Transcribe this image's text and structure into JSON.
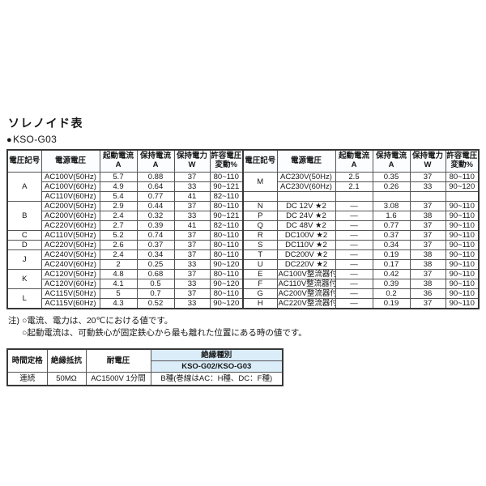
{
  "page": {
    "title": "ソレノイド表",
    "model_bullet": "●",
    "model": "KSO-G03"
  },
  "solenoid": {
    "headers": {
      "symbol": "電圧記号",
      "source": "電源電圧",
      "inrush": [
        "起動電流",
        "A"
      ],
      "holding_current": [
        "保持電流",
        "A"
      ],
      "holding_power": [
        "保持電力",
        "W"
      ],
      "tolerance": [
        "許容電圧",
        "変動%"
      ]
    },
    "rows": [
      {
        "left": [
          {
            "t": "A",
            "rs": 3,
            "sym": 1
          },
          {
            "t": "AC100V(50Hz)"
          },
          {
            "t": "5.7"
          },
          {
            "t": "0.88"
          },
          {
            "t": "37"
          },
          {
            "t": "80~110"
          }
        ],
        "right": [
          {
            "t": "M",
            "rs": 2,
            "sym": 1
          },
          {
            "t": "AC230V(50Hz)"
          },
          {
            "t": "2.5"
          },
          {
            "t": "0.35"
          },
          {
            "t": "37"
          },
          {
            "t": "80~110"
          }
        ]
      },
      {
        "left": [
          {
            "t": "AC100V(60Hz)"
          },
          {
            "t": "4.9"
          },
          {
            "t": "0.64"
          },
          {
            "t": "33"
          },
          {
            "t": "90~121"
          }
        ],
        "right": [
          {
            "t": "AC230V(60Hz)"
          },
          {
            "t": "2.1"
          },
          {
            "t": "0.26"
          },
          {
            "t": "33"
          },
          {
            "t": "90~120"
          }
        ]
      },
      {
        "left": [
          {
            "t": "AC110V(60Hz)"
          },
          {
            "t": "5.4"
          },
          {
            "t": "0.77"
          },
          {
            "t": "41"
          },
          {
            "t": "82~110"
          }
        ],
        "right": [
          {
            "t": "",
            "sym": 1
          },
          {
            "t": ""
          },
          {
            "t": ""
          },
          {
            "t": ""
          },
          {
            "t": ""
          },
          {
            "t": ""
          }
        ]
      },
      {
        "left": [
          {
            "t": "B",
            "rs": 3,
            "sym": 1
          },
          {
            "t": "AC200V(50Hz)"
          },
          {
            "t": "2.9"
          },
          {
            "t": "0.44"
          },
          {
            "t": "37"
          },
          {
            "t": "80~110"
          }
        ],
        "right": [
          {
            "t": "N",
            "sym": 1
          },
          {
            "t": "DC 12V ★2"
          },
          {
            "t": "—"
          },
          {
            "t": "3.08"
          },
          {
            "t": "37"
          },
          {
            "t": "90~110"
          }
        ]
      },
      {
        "left": [
          {
            "t": "AC200V(60Hz)"
          },
          {
            "t": "2.4"
          },
          {
            "t": "0.32"
          },
          {
            "t": "33"
          },
          {
            "t": "90~121"
          }
        ],
        "right": [
          {
            "t": "P",
            "sym": 1
          },
          {
            "t": "DC 24V ★2"
          },
          {
            "t": "—"
          },
          {
            "t": "1.6"
          },
          {
            "t": "38"
          },
          {
            "t": "90~110"
          }
        ]
      },
      {
        "left": [
          {
            "t": "AC220V(60Hz)"
          },
          {
            "t": "2.7"
          },
          {
            "t": "0.39"
          },
          {
            "t": "41"
          },
          {
            "t": "82~110"
          }
        ],
        "right": [
          {
            "t": "Q",
            "sym": 1
          },
          {
            "t": "DC 48V ★2"
          },
          {
            "t": "—"
          },
          {
            "t": "0.77"
          },
          {
            "t": "37"
          },
          {
            "t": "90~110"
          }
        ]
      },
      {
        "left": [
          {
            "t": "C",
            "sym": 1
          },
          {
            "t": "AC110V(50Hz)"
          },
          {
            "t": "5.2"
          },
          {
            "t": "0.74"
          },
          {
            "t": "37"
          },
          {
            "t": "80~110"
          }
        ],
        "right": [
          {
            "t": "R",
            "sym": 1
          },
          {
            "t": "DC100V ★2"
          },
          {
            "t": "—"
          },
          {
            "t": "0.37"
          },
          {
            "t": "37"
          },
          {
            "t": "90~110"
          }
        ]
      },
      {
        "left": [
          {
            "t": "D",
            "sym": 1
          },
          {
            "t": "AC220V(50Hz)"
          },
          {
            "t": "2.6"
          },
          {
            "t": "0.37"
          },
          {
            "t": "37"
          },
          {
            "t": "80~110"
          }
        ],
        "right": [
          {
            "t": "S",
            "sym": 1
          },
          {
            "t": "DC110V ★2"
          },
          {
            "t": "—"
          },
          {
            "t": "0.34"
          },
          {
            "t": "37"
          },
          {
            "t": "90~110"
          }
        ]
      },
      {
        "left": [
          {
            "t": "J",
            "rs": 2,
            "sym": 1
          },
          {
            "t": "AC240V(50Hz)"
          },
          {
            "t": "2.4"
          },
          {
            "t": "0.34"
          },
          {
            "t": "37"
          },
          {
            "t": "80~110"
          }
        ],
        "right": [
          {
            "t": "T",
            "sym": 1
          },
          {
            "t": "DC200V ★2"
          },
          {
            "t": "—"
          },
          {
            "t": "0.19"
          },
          {
            "t": "38"
          },
          {
            "t": "90~110"
          }
        ]
      },
      {
        "left": [
          {
            "t": "AC240V(60Hz)"
          },
          {
            "t": "2"
          },
          {
            "t": "0.25"
          },
          {
            "t": "33"
          },
          {
            "t": "90~120"
          }
        ],
        "right": [
          {
            "t": "U",
            "sym": 1
          },
          {
            "t": "DC220V ★2"
          },
          {
            "t": "—"
          },
          {
            "t": "0.17"
          },
          {
            "t": "38"
          },
          {
            "t": "90~110"
          }
        ]
      },
      {
        "left": [
          {
            "t": "K",
            "rs": 2,
            "sym": 1
          },
          {
            "t": "AC120V(50Hz)"
          },
          {
            "t": "4.8"
          },
          {
            "t": "0.68"
          },
          {
            "t": "37"
          },
          {
            "t": "80~110"
          }
        ],
        "right": [
          {
            "t": "E",
            "sym": 1
          },
          {
            "t": "AC100V整流器付"
          },
          {
            "t": "—"
          },
          {
            "t": "0.42"
          },
          {
            "t": "37"
          },
          {
            "t": "90~110"
          }
        ]
      },
      {
        "left": [
          {
            "t": "AC120V(60Hz)"
          },
          {
            "t": "4.1"
          },
          {
            "t": "0.5"
          },
          {
            "t": "33"
          },
          {
            "t": "90~120"
          }
        ],
        "right": [
          {
            "t": "F",
            "sym": 1
          },
          {
            "t": "AC110V整流器付"
          },
          {
            "t": "—"
          },
          {
            "t": "0.39"
          },
          {
            "t": "38"
          },
          {
            "t": "90~110"
          }
        ]
      },
      {
        "left": [
          {
            "t": "L",
            "rs": 2,
            "sym": 1
          },
          {
            "t": "AC115V(50Hz)"
          },
          {
            "t": "5"
          },
          {
            "t": "0.7"
          },
          {
            "t": "37"
          },
          {
            "t": "80~110"
          }
        ],
        "right": [
          {
            "t": "G",
            "sym": 1
          },
          {
            "t": "AC200V整流器付"
          },
          {
            "t": "—"
          },
          {
            "t": "0.2"
          },
          {
            "t": "36"
          },
          {
            "t": "90~110"
          }
        ]
      },
      {
        "left": [
          {
            "t": "AC115V(60Hz)"
          },
          {
            "t": "4.3"
          },
          {
            "t": "0.52"
          },
          {
            "t": "33"
          },
          {
            "t": "90~120"
          }
        ],
        "right": [
          {
            "t": "H",
            "sym": 1
          },
          {
            "t": "AC220V整流器付"
          },
          {
            "t": "—"
          },
          {
            "t": "0.19"
          },
          {
            "t": "37"
          },
          {
            "t": "90~110"
          }
        ]
      }
    ]
  },
  "notes": {
    "label": "注)",
    "items": [
      "○電流、電力は、20℃における値です。",
      "○起動電流は、可動鉄心が固定鉄心から最も離れた位置にある時の値です。"
    ]
  },
  "spec": {
    "headers": {
      "time_rating": "時間定格",
      "insulation_resistance": "絶縁抵抗",
      "withstand_voltage": "耐電圧",
      "insulation_class": "絶縁種別",
      "insulation_class_models": "KSO-G02/KSO-G03"
    },
    "values": {
      "time_rating": "連続",
      "insulation_resistance": "50MΩ",
      "withstand_voltage": "AC1500V 1分間",
      "insulation_class": "B種(巻線はAC：H種、DC：F種)"
    }
  }
}
